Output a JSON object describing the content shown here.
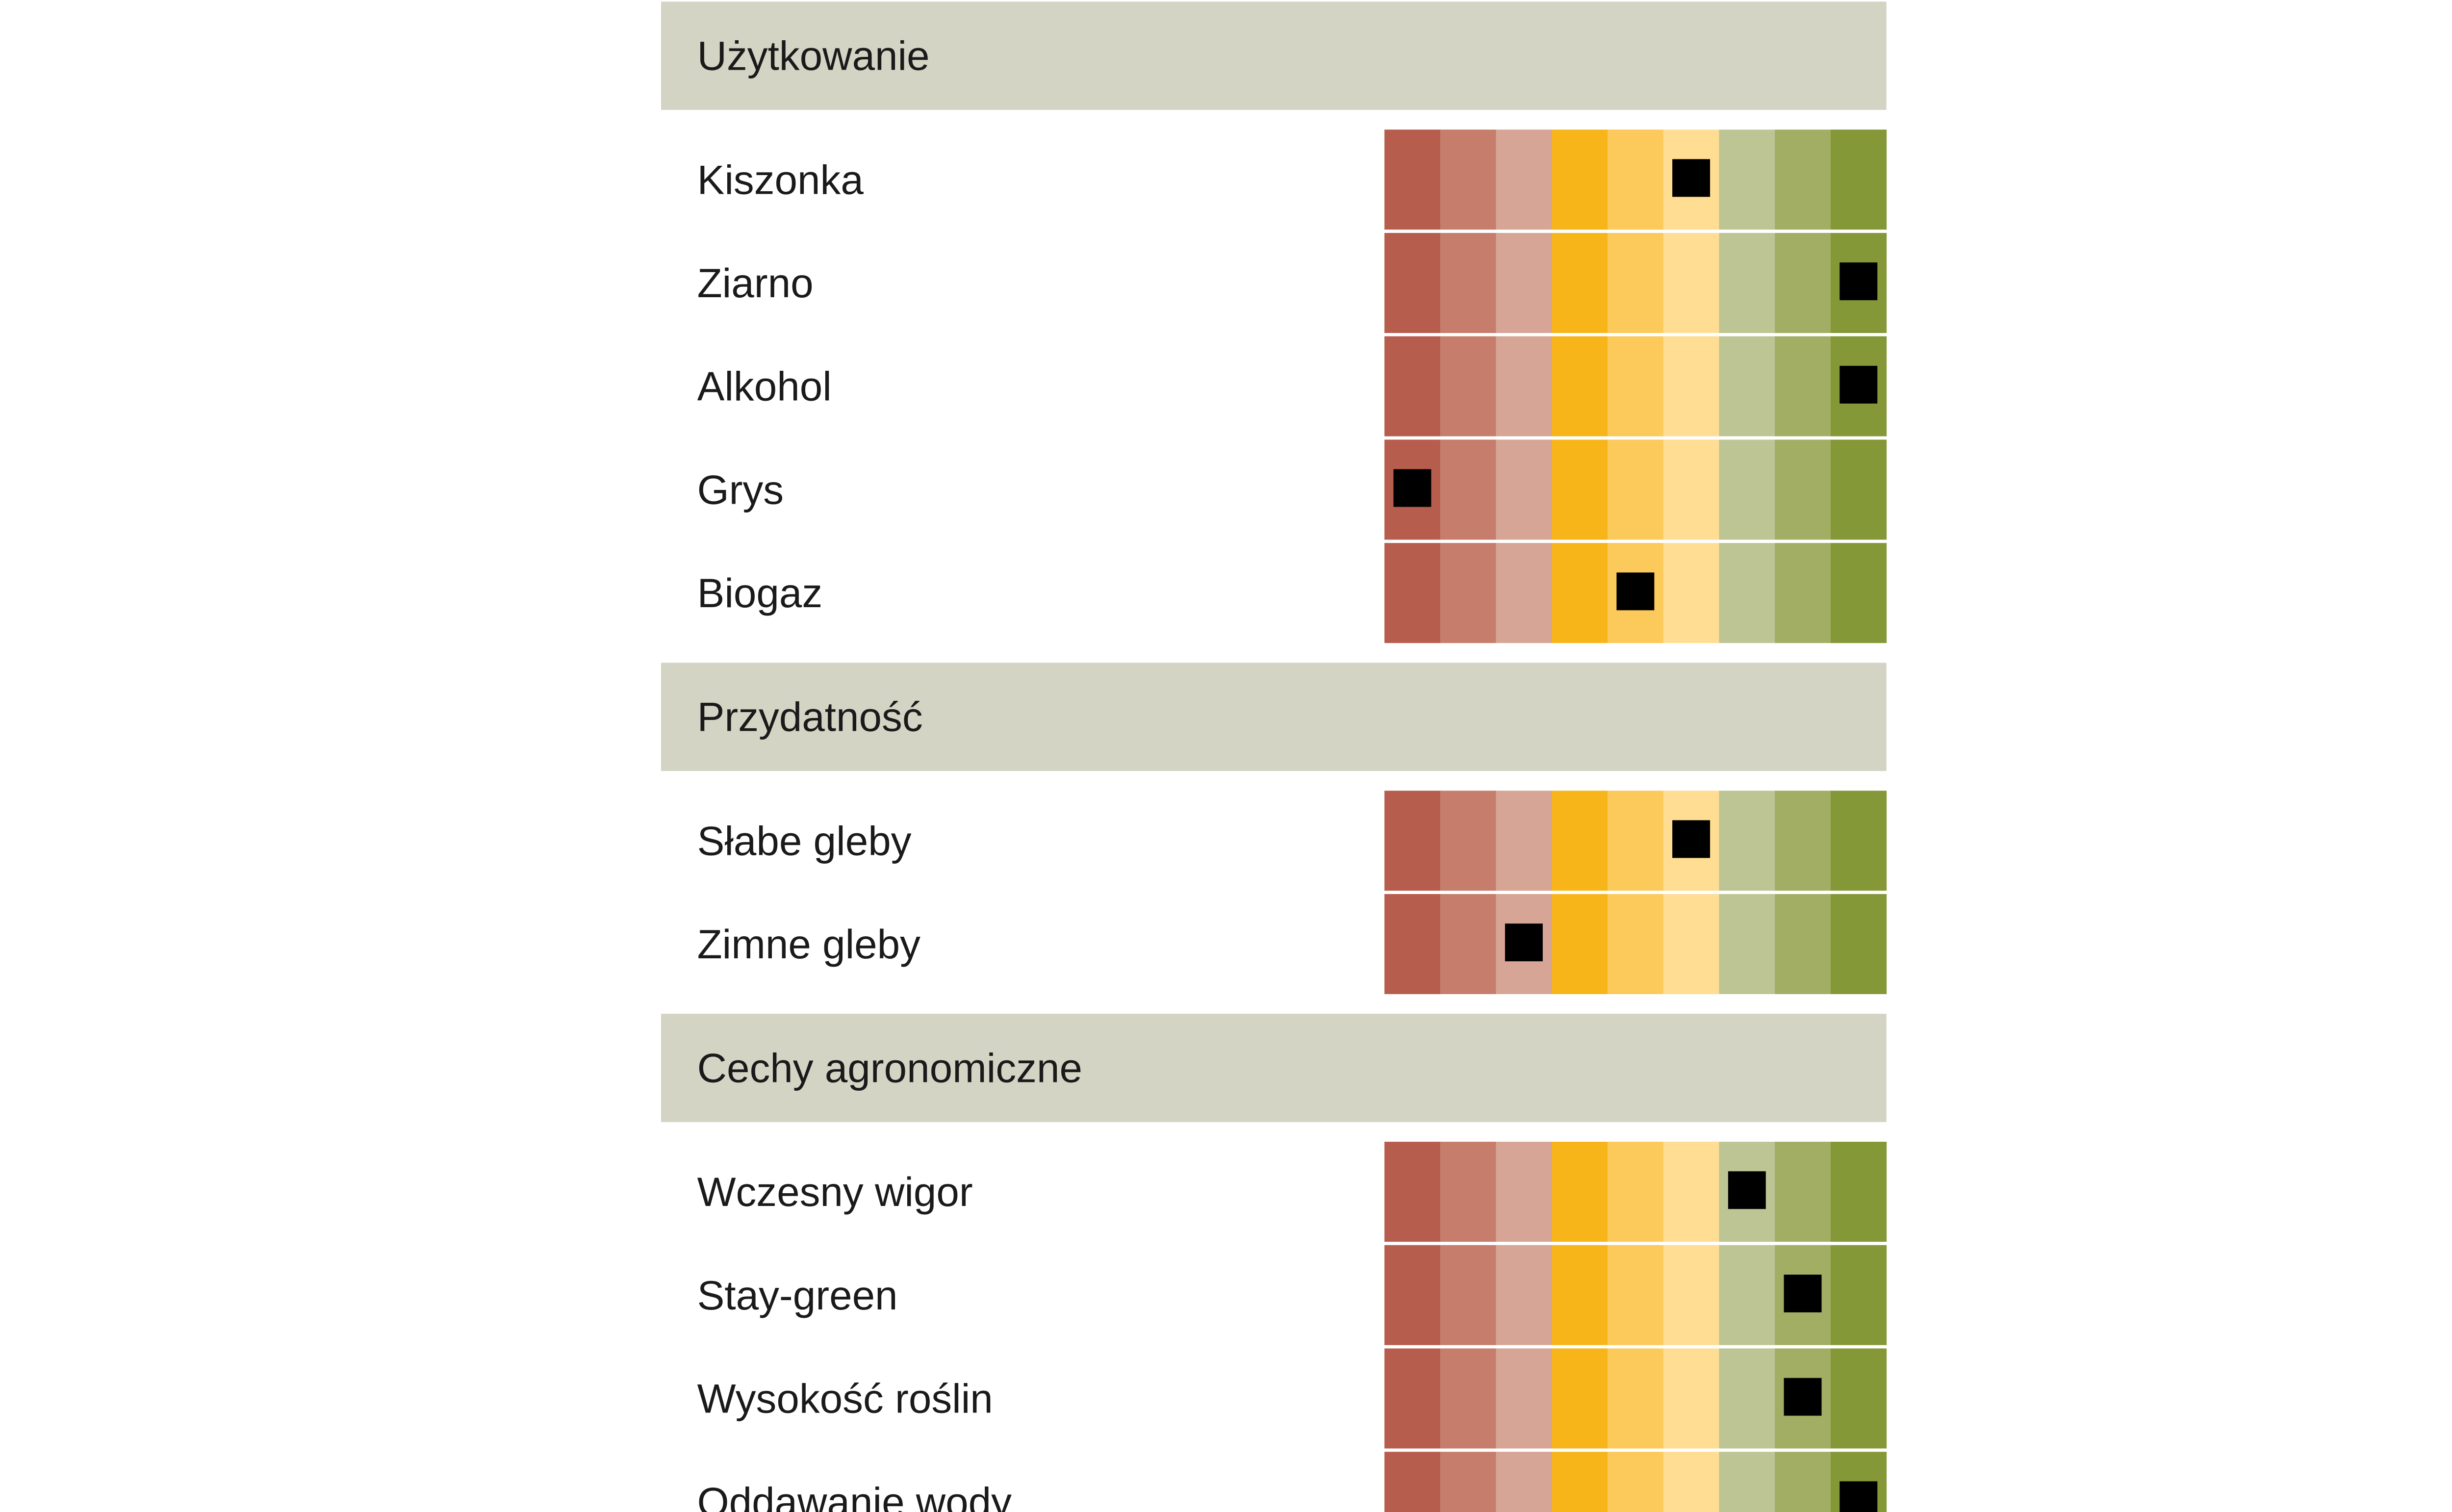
{
  "chart_data": {
    "type": "heatmap",
    "scale_levels": 9,
    "scale_colors": [
      "#b75d4d",
      "#c67d6b",
      "#d6a595",
      "#f7b51a",
      "#fcc95b",
      "#ffdd93",
      "#bec595",
      "#a2ae64",
      "#849837"
    ],
    "section_header_color": "#d3d4c4",
    "marker_color": "#000000",
    "sections": [
      {
        "title": "Użytkowanie",
        "rows": [
          {
            "label": "Kiszonka",
            "value": 6
          },
          {
            "label": "Ziarno",
            "value": 9
          },
          {
            "label": "Alkohol",
            "value": 9
          },
          {
            "label": "Grys",
            "value": 1
          },
          {
            "label": "Biogaz",
            "value": 5
          }
        ]
      },
      {
        "title": "Przydatność",
        "rows": [
          {
            "label": "Słabe gleby",
            "value": 6
          },
          {
            "label": "Zimne gleby",
            "value": 3
          }
        ]
      },
      {
        "title": "Cechy agronomiczne",
        "rows": [
          {
            "label": "Wczesny wigor",
            "value": 7
          },
          {
            "label": "Stay-green",
            "value": 8
          },
          {
            "label": "Wysokość roślin",
            "value": 8
          },
          {
            "label": "Oddawanie wody",
            "value": 9
          }
        ]
      }
    ]
  }
}
